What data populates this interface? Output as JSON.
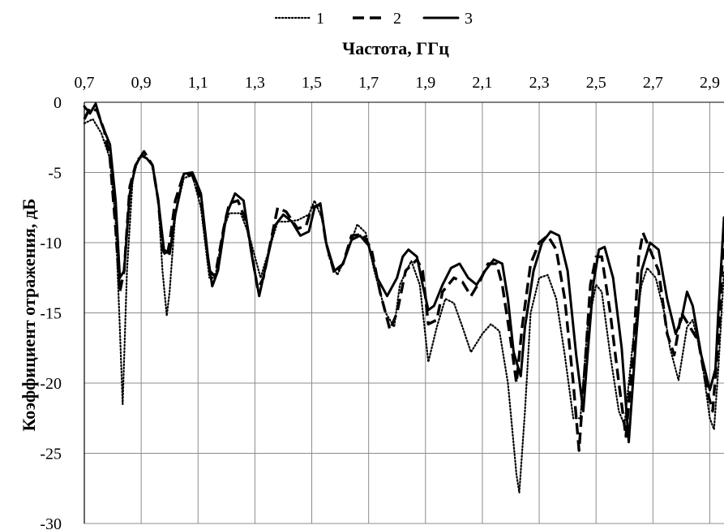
{
  "chart_data": {
    "type": "line",
    "title": "",
    "xlabel": "Частота, ГГц",
    "ylabel": "Коэффициент отражения, дБ",
    "xlim": [
      0.7,
      2.95
    ],
    "ylim": [
      -30,
      0
    ],
    "x_axis_position": "top",
    "x_ticks": [
      "0,7",
      "0,9",
      "1,1",
      "1,3",
      "1,5",
      "1,7",
      "1,9",
      "2,1",
      "2,3",
      "2,5",
      "2,7",
      "2,9"
    ],
    "y_ticks": [
      "0",
      "-5",
      "-10",
      "-15",
      "-20",
      "-25",
      "-30"
    ],
    "grid": true,
    "legend_position": "top",
    "series": [
      {
        "name": "1",
        "style": "dotted",
        "color": "#000000",
        "points": [
          [
            0.7,
            -1.5
          ],
          [
            0.73,
            -1.2
          ],
          [
            0.76,
            -2.2
          ],
          [
            0.79,
            -4.0
          ],
          [
            0.81,
            -8.5
          ],
          [
            0.823,
            -15
          ],
          [
            0.835,
            -21.5
          ],
          [
            0.85,
            -12
          ],
          [
            0.87,
            -5.5
          ],
          [
            0.89,
            -4.0
          ],
          [
            0.91,
            -3.8
          ],
          [
            0.94,
            -4.5
          ],
          [
            0.96,
            -7
          ],
          [
            0.975,
            -12
          ],
          [
            0.99,
            -15.2
          ],
          [
            1.0,
            -13.5
          ],
          [
            1.02,
            -8
          ],
          [
            1.05,
            -5.4
          ],
          [
            1.08,
            -5.2
          ],
          [
            1.11,
            -7.5
          ],
          [
            1.14,
            -12.5
          ],
          [
            1.16,
            -12.5
          ],
          [
            1.19,
            -9
          ],
          [
            1.21,
            -7.9
          ],
          [
            1.25,
            -7.9
          ],
          [
            1.28,
            -9.5
          ],
          [
            1.32,
            -12.5
          ],
          [
            1.35,
            -10.5
          ],
          [
            1.38,
            -8.5
          ],
          [
            1.41,
            -8.5
          ],
          [
            1.45,
            -8.4
          ],
          [
            1.49,
            -8.0
          ],
          [
            1.51,
            -7.0
          ],
          [
            1.54,
            -8.5
          ],
          [
            1.56,
            -11
          ],
          [
            1.59,
            -12.3
          ],
          [
            1.62,
            -11
          ],
          [
            1.66,
            -8.7
          ],
          [
            1.69,
            -9.3
          ],
          [
            1.72,
            -12
          ],
          [
            1.76,
            -15
          ],
          [
            1.79,
            -16.0
          ],
          [
            1.81,
            -13
          ],
          [
            1.85,
            -11.3
          ],
          [
            1.88,
            -13
          ],
          [
            1.91,
            -18.5
          ],
          [
            1.94,
            -16
          ],
          [
            1.97,
            -14
          ],
          [
            2.0,
            -14.3
          ],
          [
            2.03,
            -16
          ],
          [
            2.06,
            -17.8
          ],
          [
            2.1,
            -16.5
          ],
          [
            2.13,
            -15.8
          ],
          [
            2.16,
            -16.3
          ],
          [
            2.19,
            -20
          ],
          [
            2.22,
            -26.5
          ],
          [
            2.23,
            -27.8
          ],
          [
            2.25,
            -22
          ],
          [
            2.27,
            -15
          ],
          [
            2.3,
            -12.5
          ],
          [
            2.33,
            -12.3
          ],
          [
            2.36,
            -14
          ],
          [
            2.39,
            -18
          ],
          [
            2.42,
            -22.5
          ],
          [
            2.445,
            -22.5
          ],
          [
            2.47,
            -16
          ],
          [
            2.5,
            -13
          ],
          [
            2.52,
            -13.5
          ],
          [
            2.55,
            -18
          ],
          [
            2.58,
            -22
          ],
          [
            2.6,
            -23
          ],
          [
            2.63,
            -17
          ],
          [
            2.66,
            -13
          ],
          [
            2.68,
            -11.8
          ],
          [
            2.71,
            -12.5
          ],
          [
            2.74,
            -15
          ],
          [
            2.76,
            -17.5
          ],
          [
            2.79,
            -19.8
          ],
          [
            2.82,
            -16
          ],
          [
            2.84,
            -15.5
          ],
          [
            2.87,
            -18
          ],
          [
            2.9,
            -22.5
          ],
          [
            2.915,
            -23.3
          ],
          [
            2.93,
            -19
          ],
          [
            2.95,
            -12
          ]
        ]
      },
      {
        "name": "2",
        "style": "dashed",
        "color": "#000000",
        "points": [
          [
            0.7,
            -1.2
          ],
          [
            0.72,
            -0.4
          ],
          [
            0.745,
            -0.6
          ],
          [
            0.77,
            -2.0
          ],
          [
            0.79,
            -4.0
          ],
          [
            0.81,
            -9
          ],
          [
            0.825,
            -13.5
          ],
          [
            0.84,
            -12
          ],
          [
            0.86,
            -6
          ],
          [
            0.88,
            -4.5
          ],
          [
            0.91,
            -3.5
          ],
          [
            0.94,
            -4.5
          ],
          [
            0.96,
            -7
          ],
          [
            0.975,
            -10.5
          ],
          [
            0.99,
            -11.0
          ],
          [
            1.0,
            -10
          ],
          [
            1.02,
            -7
          ],
          [
            1.05,
            -5.1
          ],
          [
            1.08,
            -5.2
          ],
          [
            1.11,
            -7
          ],
          [
            1.14,
            -12.0
          ],
          [
            1.16,
            -12.4
          ],
          [
            1.19,
            -9
          ],
          [
            1.21,
            -7.2
          ],
          [
            1.24,
            -7.0
          ],
          [
            1.27,
            -8.5
          ],
          [
            1.31,
            -13.3
          ],
          [
            1.33,
            -12.5
          ],
          [
            1.36,
            -9.5
          ],
          [
            1.38,
            -7.5
          ],
          [
            1.41,
            -7.8
          ],
          [
            1.45,
            -9.0
          ],
          [
            1.48,
            -8.8
          ],
          [
            1.5,
            -7.5
          ],
          [
            1.53,
            -7.3
          ],
          [
            1.55,
            -10
          ],
          [
            1.58,
            -12.2
          ],
          [
            1.61,
            -11.5
          ],
          [
            1.64,
            -9.5
          ],
          [
            1.68,
            -9.4
          ],
          [
            1.71,
            -10.5
          ],
          [
            1.74,
            -13.5
          ],
          [
            1.775,
            -16.2
          ],
          [
            1.8,
            -15
          ],
          [
            1.83,
            -12
          ],
          [
            1.87,
            -11.2
          ],
          [
            1.89,
            -12
          ],
          [
            1.91,
            -15.8
          ],
          [
            1.94,
            -15.5
          ],
          [
            1.96,
            -13.5
          ],
          [
            2.0,
            -12.5
          ],
          [
            2.03,
            -12.8
          ],
          [
            2.06,
            -13.8
          ],
          [
            2.09,
            -12.8
          ],
          [
            2.12,
            -11.5
          ],
          [
            2.15,
            -11.5
          ],
          [
            2.17,
            -13
          ],
          [
            2.2,
            -17
          ],
          [
            2.22,
            -20
          ],
          [
            2.24,
            -16
          ],
          [
            2.27,
            -11.5
          ],
          [
            2.3,
            -10
          ],
          [
            2.33,
            -9.5
          ],
          [
            2.36,
            -10.5
          ],
          [
            2.39,
            -14
          ],
          [
            2.42,
            -20
          ],
          [
            2.44,
            -24.8
          ],
          [
            2.46,
            -19
          ],
          [
            2.48,
            -13
          ],
          [
            2.5,
            -11
          ],
          [
            2.52,
            -11
          ],
          [
            2.55,
            -15
          ],
          [
            2.58,
            -20
          ],
          [
            2.605,
            -23.8
          ],
          [
            2.63,
            -18
          ],
          [
            2.65,
            -11
          ],
          [
            2.665,
            -9.3
          ],
          [
            2.69,
            -10.5
          ],
          [
            2.72,
            -12
          ],
          [
            2.75,
            -16.5
          ],
          [
            2.775,
            -18
          ],
          [
            2.8,
            -15
          ],
          [
            2.83,
            -16
          ],
          [
            2.86,
            -17
          ],
          [
            2.89,
            -20.5
          ],
          [
            2.91,
            -22
          ],
          [
            2.93,
            -17
          ],
          [
            2.95,
            -9
          ]
        ]
      },
      {
        "name": "3",
        "style": "solid",
        "color": "#000000",
        "points": [
          [
            0.7,
            -0.3
          ],
          [
            0.72,
            -0.8
          ],
          [
            0.74,
            -0.1
          ],
          [
            0.76,
            -1.5
          ],
          [
            0.79,
            -3.0
          ],
          [
            0.81,
            -7
          ],
          [
            0.825,
            -12.5
          ],
          [
            0.84,
            -12.0
          ],
          [
            0.86,
            -6.5
          ],
          [
            0.88,
            -4.5
          ],
          [
            0.9,
            -3.8
          ],
          [
            0.92,
            -4.0
          ],
          [
            0.94,
            -4.5
          ],
          [
            0.96,
            -7
          ],
          [
            0.98,
            -10.5
          ],
          [
            1.0,
            -10.8
          ],
          [
            1.02,
            -8
          ],
          [
            1.05,
            -5.1
          ],
          [
            1.08,
            -5.0
          ],
          [
            1.11,
            -6.5
          ],
          [
            1.135,
            -11
          ],
          [
            1.15,
            -13.1
          ],
          [
            1.17,
            -12
          ],
          [
            1.2,
            -8
          ],
          [
            1.23,
            -6.5
          ],
          [
            1.26,
            -7.0
          ],
          [
            1.29,
            -11
          ],
          [
            1.315,
            -13.8
          ],
          [
            1.34,
            -11.5
          ],
          [
            1.37,
            -8.8
          ],
          [
            1.4,
            -8.0
          ],
          [
            1.43,
            -8.5
          ],
          [
            1.46,
            -9.5
          ],
          [
            1.49,
            -9.2
          ],
          [
            1.51,
            -7.5
          ],
          [
            1.53,
            -7.2
          ],
          [
            1.55,
            -10
          ],
          [
            1.58,
            -12.0
          ],
          [
            1.61,
            -11.5
          ],
          [
            1.64,
            -9.8
          ],
          [
            1.67,
            -9.5
          ],
          [
            1.7,
            -10.2
          ],
          [
            1.73,
            -12.5
          ],
          [
            1.765,
            -13.8
          ],
          [
            1.8,
            -12.5
          ],
          [
            1.82,
            -11
          ],
          [
            1.84,
            -10.5
          ],
          [
            1.87,
            -11
          ],
          [
            1.89,
            -13
          ],
          [
            1.91,
            -14.8
          ],
          [
            1.93,
            -14.5
          ],
          [
            1.96,
            -13
          ],
          [
            1.99,
            -11.8
          ],
          [
            2.02,
            -11.5
          ],
          [
            2.05,
            -12.5
          ],
          [
            2.08,
            -13
          ],
          [
            2.11,
            -12
          ],
          [
            2.14,
            -11.2
          ],
          [
            2.17,
            -11.5
          ],
          [
            2.19,
            -14
          ],
          [
            2.21,
            -17.8
          ],
          [
            2.235,
            -19.5
          ],
          [
            2.25,
            -16
          ],
          [
            2.28,
            -12
          ],
          [
            2.31,
            -10
          ],
          [
            2.34,
            -9.2
          ],
          [
            2.37,
            -9.5
          ],
          [
            2.4,
            -12
          ],
          [
            2.43,
            -18
          ],
          [
            2.455,
            -22
          ],
          [
            2.47,
            -18
          ],
          [
            2.49,
            -13
          ],
          [
            2.51,
            -10.5
          ],
          [
            2.53,
            -10.3
          ],
          [
            2.56,
            -12.5
          ],
          [
            2.59,
            -17.5
          ],
          [
            2.615,
            -24.2
          ],
          [
            2.64,
            -17
          ],
          [
            2.66,
            -12
          ],
          [
            2.69,
            -10.0
          ],
          [
            2.72,
            -10.5
          ],
          [
            2.75,
            -14
          ],
          [
            2.78,
            -16.5
          ],
          [
            2.8,
            -15.5
          ],
          [
            2.82,
            -13.5
          ],
          [
            2.84,
            -14.5
          ],
          [
            2.87,
            -18
          ],
          [
            2.9,
            -20.5
          ],
          [
            2.92,
            -19
          ],
          [
            2.93,
            -15
          ],
          [
            2.95,
            -8.2
          ]
        ]
      }
    ]
  }
}
